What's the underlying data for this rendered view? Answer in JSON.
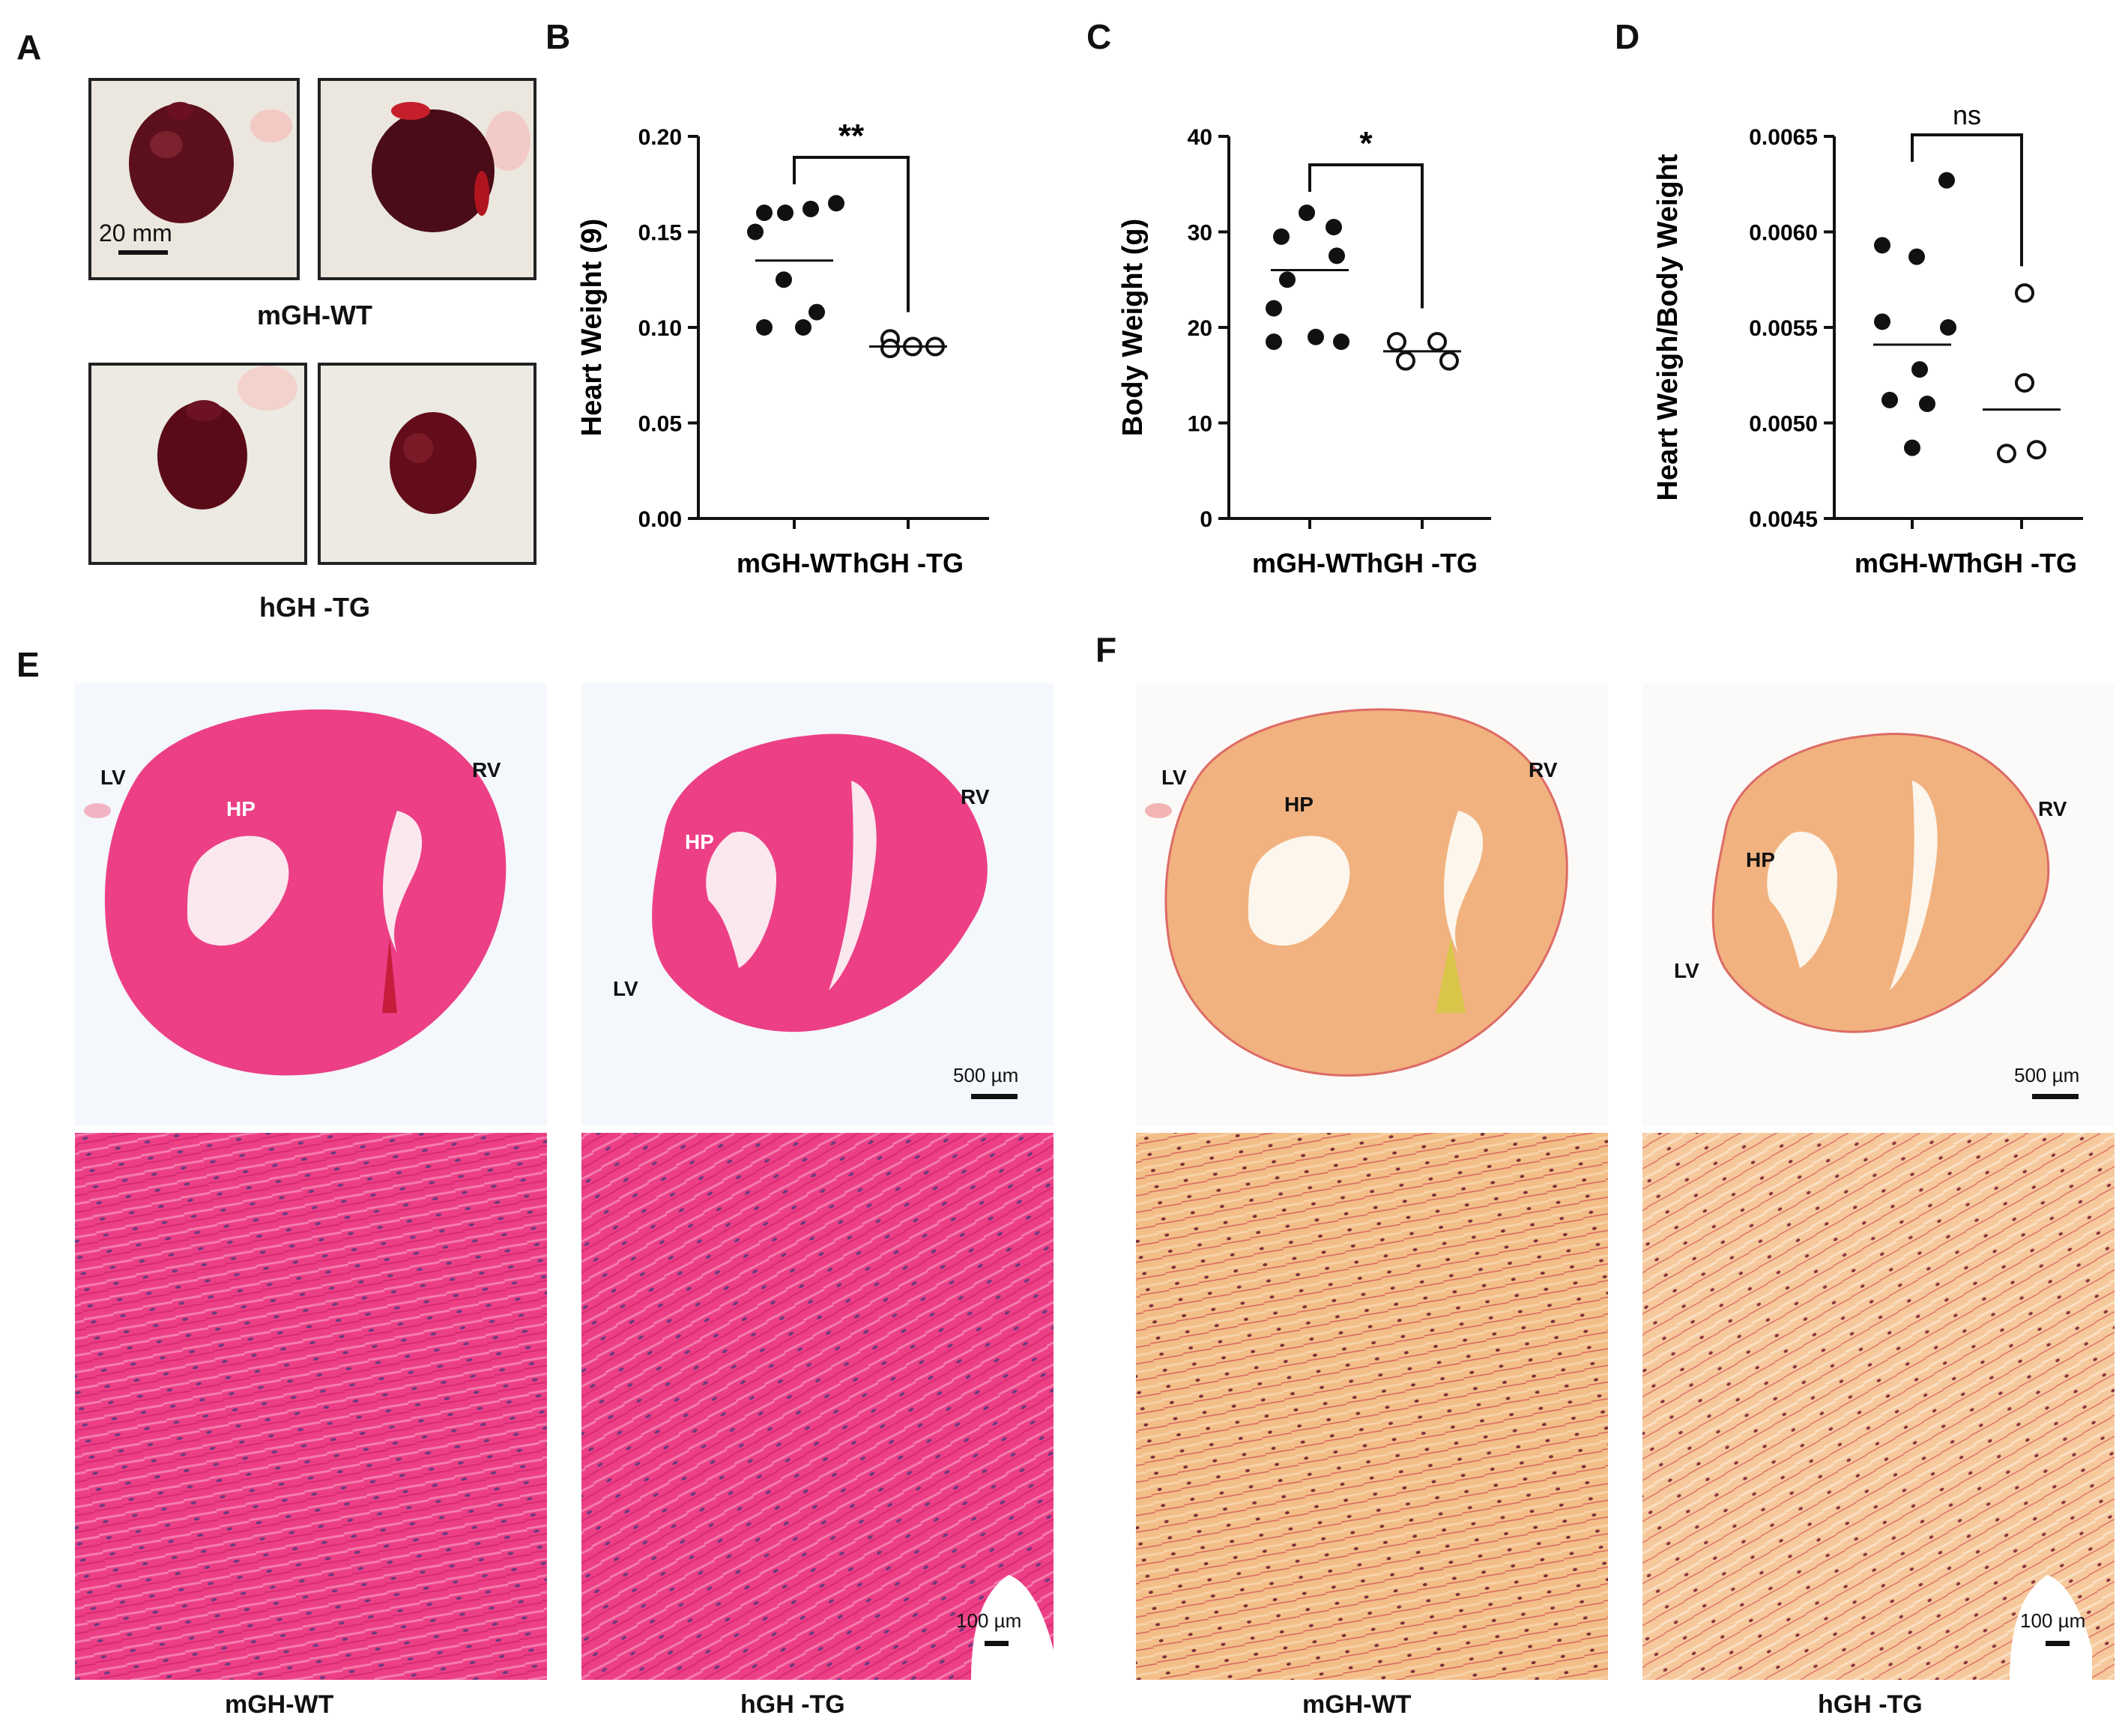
{
  "panels": {
    "a": "A",
    "b": "B",
    "c": "C",
    "d": "D",
    "e": "E",
    "f": "F"
  },
  "panel_a": {
    "scale_label": "20 mm",
    "group_top": "mGH-WT",
    "group_bottom": "hGH -TG"
  },
  "chart_data": [
    {
      "type": "scatter",
      "panel": "B",
      "ylabel": "Heart Weight (9)",
      "categories": [
        "mGH-WT",
        "hGH -TG"
      ],
      "ylim": [
        0.0,
        0.2
      ],
      "yticks": [
        "0.00",
        "0.05",
        "0.10",
        "0.15",
        "0.20"
      ],
      "ytick_values": [
        0.0,
        0.05,
        0.1,
        0.15,
        0.2
      ],
      "series": [
        {
          "values": [
            0.16,
            0.16,
            0.162,
            0.165,
            0.15,
            0.125,
            0.108,
            0.1,
            0.1
          ],
          "filled": true,
          "mean": 0.135
        },
        {
          "values": [
            0.094,
            0.089,
            0.09,
            0.09
          ],
          "filled": false,
          "mean": 0.09
        }
      ],
      "significance": "**"
    },
    {
      "type": "scatter",
      "panel": "C",
      "ylabel": "Body Weight (g)",
      "categories": [
        "mGH-WT",
        "hGH -TG"
      ],
      "ylim": [
        0,
        40
      ],
      "yticks": [
        "0",
        "10",
        "20",
        "30",
        "40"
      ],
      "ytick_values": [
        0,
        10,
        20,
        30,
        40
      ],
      "series": [
        {
          "values": [
            32,
            30.5,
            29.5,
            27.5,
            25,
            22,
            18.5,
            18.5,
            19
          ],
          "filled": true,
          "mean": 26
        },
        {
          "values": [
            18.5,
            16.5,
            18.5,
            16.5
          ],
          "filled": false,
          "mean": 17.5
        }
      ],
      "significance": "*"
    },
    {
      "type": "scatter",
      "panel": "D",
      "ylabel": "Heart Weigh/Body Weight",
      "categories": [
        "mGH-WT",
        "hGH -TG"
      ],
      "ylim": [
        0.0045,
        0.0065
      ],
      "yticks": [
        "0.0045",
        "0.0050",
        "0.0055",
        "0.0060",
        "0.0065"
      ],
      "ytick_values": [
        0.0045,
        0.005,
        0.0055,
        0.006,
        0.0065
      ],
      "series": [
        {
          "values": [
            0.00627,
            0.00593,
            0.00587,
            0.00553,
            0.0055,
            0.00528,
            0.00512,
            0.0051,
            0.00487
          ],
          "filled": true,
          "mean": 0.00541
        },
        {
          "values": [
            0.00568,
            0.00521,
            0.00484,
            0.00486
          ],
          "filled": false,
          "mean": 0.00507
        }
      ],
      "significance": "ns"
    }
  ],
  "panel_e": {
    "lv": "LV",
    "rv": "RV",
    "hp": "HP",
    "scale_top": "500 µm",
    "scale_bottom": "100 µm",
    "label_left": "mGH-WT",
    "label_right": "hGH -TG",
    "stain_color": "#ec3f86"
  },
  "panel_f": {
    "lv": "LV",
    "rv": "RV",
    "hp": "HP",
    "scale_top": "500 µm",
    "scale_bottom": "100 µm",
    "label_left": "mGH-WT",
    "label_right": "hGH -TG",
    "stain_color": "#f1b27f"
  }
}
